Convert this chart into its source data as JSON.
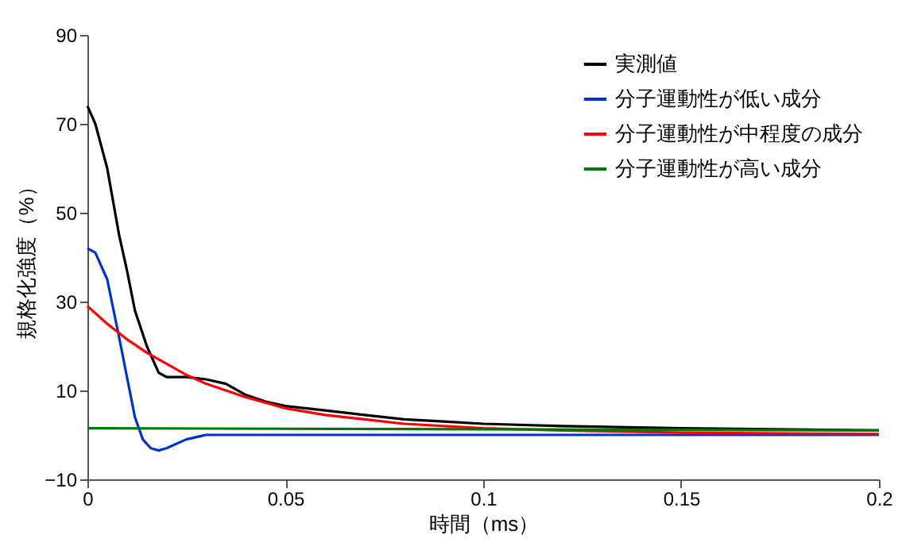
{
  "chart_data": {
    "type": "line",
    "xlabel": "時間（ms）",
    "ylabel": "規格化強度（%）",
    "xlim": [
      0,
      0.2
    ],
    "xticks": [
      0,
      0.05,
      0.1,
      0.15,
      0.2
    ],
    "ylim": [
      -10,
      90
    ],
    "yticks": [
      -10,
      10,
      30,
      50,
      70,
      90
    ],
    "grid": false,
    "legend": "top right",
    "marker": "none",
    "line_style": "solid",
    "series": [
      {
        "name": "実測値",
        "color": "#000000",
        "x": [
          0,
          0.002,
          0.005,
          0.008,
          0.01,
          0.012,
          0.015,
          0.018,
          0.02,
          0.025,
          0.03,
          0.035,
          0.04,
          0.045,
          0.05,
          0.06,
          0.07,
          0.08,
          0.09,
          0.1,
          0.12,
          0.15,
          0.2
        ],
        "values": [
          74,
          70,
          60,
          45,
          37,
          28,
          20,
          14,
          13,
          13,
          12.5,
          11.5,
          9,
          7.5,
          6.5,
          5.5,
          4.5,
          3.5,
          3,
          2.5,
          2,
          1.5,
          1
        ]
      },
      {
        "name": "分子運動性が低い成分",
        "color": "#0033cc",
        "x": [
          0,
          0.002,
          0.005,
          0.008,
          0.01,
          0.012,
          0.014,
          0.016,
          0.018,
          0.02,
          0.025,
          0.03,
          0.2
        ],
        "values": [
          42,
          41,
          35,
          22,
          13,
          4,
          -1,
          -3,
          -3.5,
          -3,
          -1,
          0,
          0
        ]
      },
      {
        "name": "分子運動性が中程度の成分",
        "color": "#ff0000",
        "x": [
          0,
          0.005,
          0.01,
          0.015,
          0.02,
          0.025,
          0.03,
          0.04,
          0.05,
          0.06,
          0.07,
          0.08,
          0.1,
          0.12,
          0.15,
          0.2
        ],
        "values": [
          29,
          25,
          21.5,
          18.5,
          16,
          13.5,
          11.5,
          8.5,
          6,
          4.5,
          3.5,
          2.5,
          1.5,
          1,
          0.5,
          0.2
        ]
      },
      {
        "name": "分子運動性が高い成分",
        "color": "#007700",
        "x": [
          0,
          0.2
        ],
        "values": [
          1.5,
          1
        ]
      }
    ]
  }
}
